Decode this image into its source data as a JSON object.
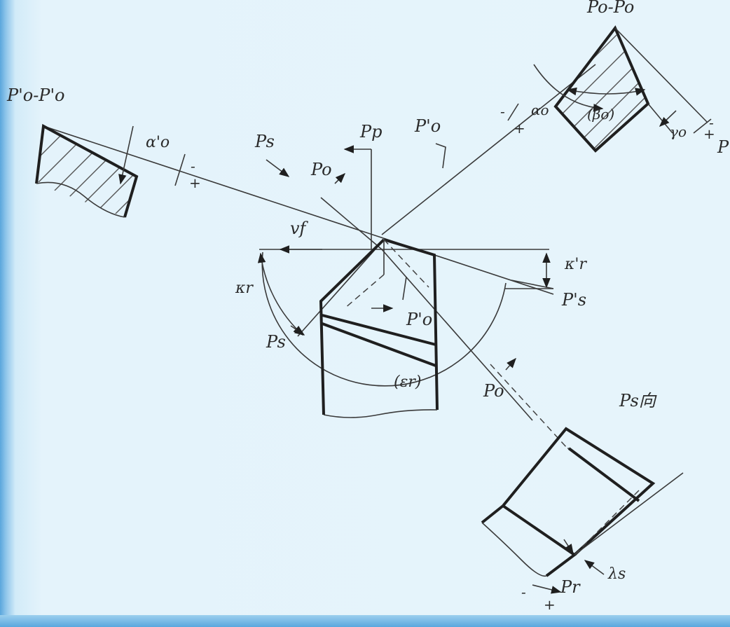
{
  "labels": {
    "section_left": "P'o-P'o",
    "section_top": "Po-Po",
    "alpha_o_prime": "α'o",
    "alpha_o": "αo",
    "beta_o": "(βo)",
    "gamma_o": "γo",
    "P_edge": "P",
    "Ps_top": "Ps",
    "Pp": "Pp",
    "Po_prime_top": "P'o",
    "Po_upper": "Po",
    "vf": "vf",
    "kr_prime": "κ'r",
    "Ps_prime": "P's",
    "kr": "κr",
    "Ps_lower": "Ps",
    "Po_prime_center": "P'o",
    "epsilon_r": "(εr)",
    "Po_lower": "Po",
    "Ps_view": "Ps向",
    "lambda_s": "λs",
    "Pr": "Pr"
  },
  "signs": {
    "minus": "-",
    "plus": "+"
  },
  "colors": {
    "background": "#e6f4fb",
    "line": "#1f1f1f",
    "frame": "#5aa7de"
  }
}
